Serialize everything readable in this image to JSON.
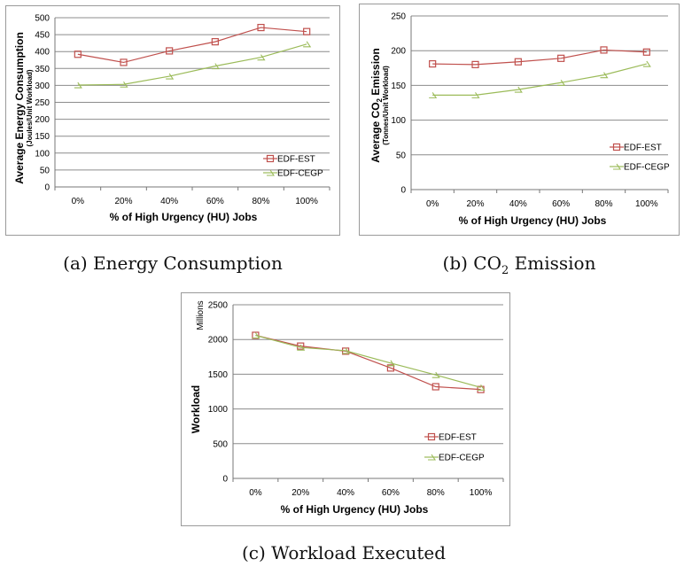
{
  "colors": {
    "est": "#c0504d",
    "cegp": "#9bbb59",
    "grid": "#8c8c8c"
  },
  "captions": {
    "a": "(a) Energy Consumption",
    "b_prefix": "(b) CO",
    "b_sub": "2",
    "b_suffix": " Emission",
    "c": "(c) Workload Executed"
  },
  "chart_data": [
    {
      "type": "line",
      "categories": [
        "0%",
        "20%",
        "40%",
        "60%",
        "80%",
        "100%"
      ],
      "xlabel": "% of High Urgency (HU) Jobs",
      "ylabel": "Average Energy Consumption",
      "ylabel_sub": "(Joules/Unit Workload)",
      "ylim": [
        0,
        500
      ],
      "yticks": [
        0,
        50,
        100,
        150,
        200,
        250,
        300,
        350,
        400,
        450,
        500
      ],
      "grid": true,
      "legend_position": "bottom-right",
      "series": [
        {
          "name": "EDF-EST",
          "marker": "square",
          "values": [
            392,
            368,
            402,
            429,
            471,
            459
          ]
        },
        {
          "name": "EDF-CEGP",
          "marker": "triangle",
          "values": [
            301,
            303,
            327,
            357,
            383,
            422
          ]
        }
      ]
    },
    {
      "type": "line",
      "categories": [
        "0%",
        "20%",
        "40%",
        "60%",
        "80%",
        "100%"
      ],
      "xlabel": "% of High Urgency (HU) Jobs",
      "ylabel": "Average CO",
      "ylabel_sub_script": "2",
      "ylabel_tail": " Emission",
      "ylabel_sub": "(Tonnes/Unit Workload)",
      "ylim": [
        0,
        250
      ],
      "yticks": [
        0,
        50,
        100,
        150,
        200,
        250
      ],
      "grid": true,
      "legend_position": "right",
      "series": [
        {
          "name": "EDF-EST",
          "marker": "square",
          "values": [
            181,
            180,
            184,
            189,
            201,
            198
          ]
        },
        {
          "name": "EDF-CEGP",
          "marker": "triangle",
          "values": [
            136,
            136,
            144,
            154,
            165,
            181
          ]
        }
      ]
    },
    {
      "type": "line",
      "categories": [
        "0%",
        "20%",
        "40%",
        "60%",
        "80%",
        "100%"
      ],
      "xlabel": "% of High Urgency (HU) Jobs",
      "ylabel": "Workload",
      "unit_label": "Millions",
      "ylim": [
        0,
        2500
      ],
      "yticks": [
        0,
        500,
        1000,
        1500,
        2000,
        2500
      ],
      "grid": true,
      "legend_position": "right",
      "series": [
        {
          "name": "EDF-EST",
          "marker": "square",
          "values": [
            2060,
            1905,
            1832,
            1590,
            1320,
            1280
          ]
        },
        {
          "name": "EDF-CEGP",
          "marker": "triangle",
          "values": [
            2060,
            1885,
            1838,
            1660,
            1490,
            1310
          ]
        }
      ]
    }
  ]
}
